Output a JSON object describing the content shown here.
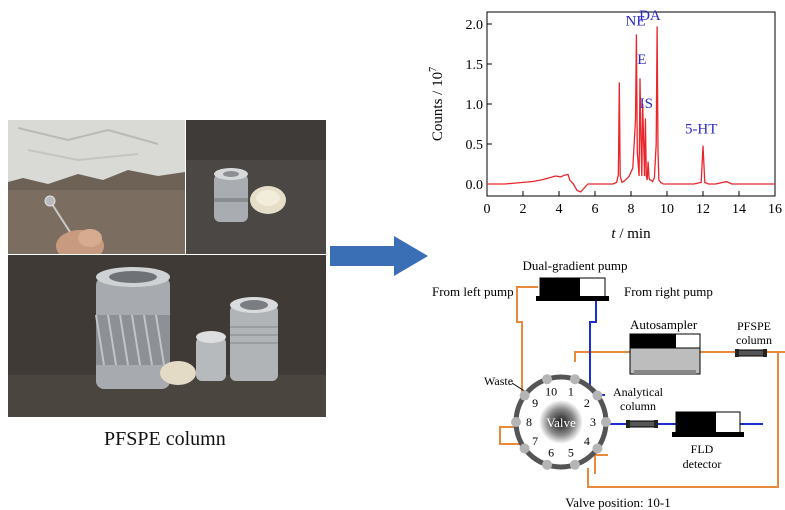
{
  "photos": {
    "caption": "PFSPE column"
  },
  "chart_data": {
    "type": "line",
    "xlabel_italic": "t",
    "xlabel_rest": " / min",
    "ylabel": "Counts / 10",
    "ylabel_exp": "7",
    "xlim": [
      0,
      16
    ],
    "ylim": [
      -0.15,
      2.15
    ],
    "x_ticks": [
      "0",
      "2",
      "4",
      "6",
      "8",
      "10",
      "12",
      "14",
      "16"
    ],
    "y_ticks": [
      "0.0",
      "0.5",
      "1.0",
      "1.5",
      "2.0"
    ],
    "series_color": "#e8262b",
    "label_color": "#2a2acb",
    "series": [
      {
        "x": [
          0,
          1,
          2,
          2.5,
          3,
          3.5,
          3.8,
          4.1,
          4.3,
          4.5,
          4.6,
          4.8,
          5.0,
          5.2,
          5.4,
          5.6,
          6.0,
          6.5,
          7.0,
          7.2,
          7.3,
          7.35,
          7.4,
          7.5,
          7.7,
          7.9,
          8.1,
          8.25,
          8.3,
          8.35,
          8.45,
          8.5,
          8.55,
          8.6,
          8.65,
          8.75,
          8.8,
          8.85,
          8.9,
          8.95,
          9.0,
          9.05,
          9.1,
          9.2,
          9.3,
          9.4,
          9.45,
          9.5,
          9.55,
          9.65,
          9.8,
          10.5,
          11.0,
          11.5,
          11.9,
          12.0,
          12.1,
          12.3,
          12.7,
          13.3,
          13.6,
          14.0,
          15.0,
          16.0
        ],
        "y": [
          0.0,
          0.0,
          0.02,
          0.03,
          0.05,
          0.08,
          0.1,
          0.09,
          0.11,
          0.12,
          0.05,
          0.0,
          -0.08,
          -0.1,
          -0.05,
          0.0,
          0.0,
          0.0,
          0.0,
          0.02,
          0.12,
          1.27,
          0.1,
          0.02,
          0.05,
          0.1,
          0.2,
          0.8,
          1.87,
          0.4,
          0.1,
          1.32,
          0.6,
          0.1,
          1.0,
          0.1,
          0.82,
          0.1,
          0.05,
          0.28,
          0.08,
          0.05,
          0.05,
          0.03,
          0.08,
          0.5,
          1.97,
          0.4,
          0.05,
          0.02,
          0.0,
          0.0,
          0.0,
          0.0,
          0.02,
          0.48,
          0.02,
          0.0,
          0.0,
          0.03,
          0.0,
          0.0,
          0.0,
          0.0
        ]
      }
    ],
    "annotations": [
      {
        "text": "NE",
        "x": 8.25,
        "y": 1.98
      },
      {
        "text": "DA",
        "x": 9.05,
        "y": 2.05
      },
      {
        "text": "E",
        "x": 8.6,
        "y": 1.5
      },
      {
        "text": "IS",
        "x": 8.85,
        "y": 0.95
      },
      {
        "text": "5-HT",
        "x": 11.9,
        "y": 0.63
      }
    ]
  },
  "diagram": {
    "pump": "Dual-gradient pump",
    "from_left": "From left pump",
    "from_right": "From right pump",
    "autosampler": "Autosampler",
    "pfspe": "PFSPE",
    "column": "column",
    "waste": "Waste",
    "analytical": "Analytical",
    "analytical_column": "column",
    "fld": "FLD",
    "detector": "detector",
    "valve": "Valve",
    "valve_position": "Valve position: 10-1",
    "ports": [
      "10",
      "1",
      "2",
      "3",
      "4",
      "5",
      "6",
      "7",
      "8",
      "9"
    ],
    "tube_orange": "#e8893c",
    "tube_blue": "#1c2fd0",
    "arrow_color": "#3b6fb5"
  }
}
